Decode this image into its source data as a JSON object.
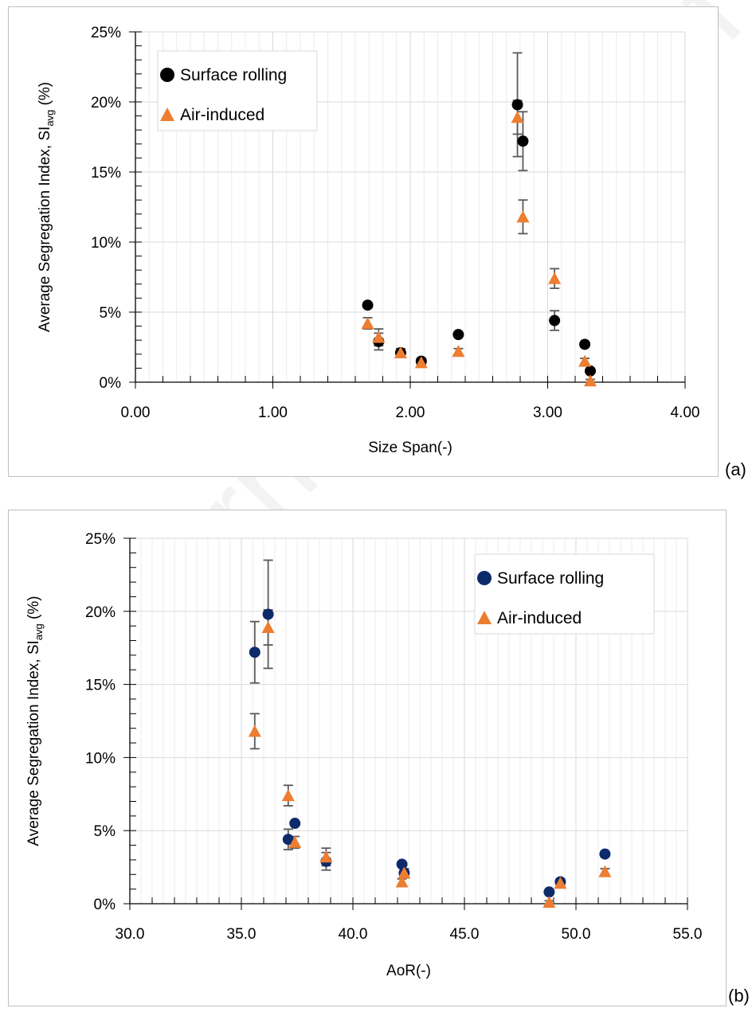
{
  "panels": [
    {
      "label": "(a)"
    },
    {
      "label": "(b)"
    }
  ],
  "watermark": "Journal Pre-proof",
  "colors": {
    "surface_a": "#000000",
    "surface_b": "#0d2a6b",
    "air": "#ed7d31",
    "grid": "#d9d9d9",
    "errorbar": "#595959"
  },
  "chart_data": [
    {
      "type": "scatter",
      "title": "",
      "xlabel": "Size Span(-)",
      "ylabel": "Average Segregation Index, SI_avg (%)",
      "ylabel_parts": {
        "main": "Average Segregation Index, SI",
        "sub": "avg",
        "tail": " (%)"
      },
      "xlim": [
        0.0,
        4.0
      ],
      "ylim": [
        0,
        0.25
      ],
      "xticks": [
        0.0,
        1.0,
        2.0,
        3.0,
        4.0
      ],
      "xtick_labels": [
        "0.00",
        "1.00",
        "2.00",
        "3.00",
        "4.00"
      ],
      "yticks": [
        0,
        0.05,
        0.1,
        0.15,
        0.2,
        0.25
      ],
      "ytick_labels": [
        "0%",
        "5%",
        "10%",
        "15%",
        "20%",
        "25%"
      ],
      "grid": true,
      "legend_position": "top-left",
      "series": [
        {
          "name": "Surface rolling",
          "marker": "circle",
          "color": "#000000",
          "points": [
            {
              "x": 1.69,
              "y": 0.055,
              "err": 0
            },
            {
              "x": 1.77,
              "y": 0.029,
              "err": 0.006
            },
            {
              "x": 1.93,
              "y": 0.021,
              "err": 0.003
            },
            {
              "x": 2.08,
              "y": 0.015,
              "err": 0.002
            },
            {
              "x": 2.35,
              "y": 0.034,
              "err": 0
            },
            {
              "x": 2.78,
              "y": 0.198,
              "err": 0.037
            },
            {
              "x": 2.82,
              "y": 0.172,
              "err": 0.021
            },
            {
              "x": 3.05,
              "y": 0.044,
              "err": 0.007
            },
            {
              "x": 3.27,
              "y": 0.027,
              "err": 0
            },
            {
              "x": 3.31,
              "y": 0.008,
              "err": 0
            }
          ]
        },
        {
          "name": "Air-induced",
          "marker": "triangle",
          "color": "#ed7d31",
          "points": [
            {
              "x": 1.69,
              "y": 0.042,
              "err": 0.004
            },
            {
              "x": 1.77,
              "y": 0.032,
              "err": 0.006
            },
            {
              "x": 1.93,
              "y": 0.021,
              "err": 0.002
            },
            {
              "x": 2.08,
              "y": 0.014,
              "err": 0.002
            },
            {
              "x": 2.35,
              "y": 0.022,
              "err": 0.002
            },
            {
              "x": 2.78,
              "y": 0.189,
              "err": 0.012
            },
            {
              "x": 2.82,
              "y": 0.118,
              "err": 0.012
            },
            {
              "x": 3.05,
              "y": 0.074,
              "err": 0.007
            },
            {
              "x": 3.27,
              "y": 0.015,
              "err": 0.002
            },
            {
              "x": 3.31,
              "y": 0.001,
              "err": 0.001
            }
          ]
        }
      ]
    },
    {
      "type": "scatter",
      "title": "",
      "xlabel": "AoR(-)",
      "ylabel": "Average Segregation Index, SI_avg (%)",
      "ylabel_parts": {
        "main": "Average Segregation Index, SI",
        "sub": "avg",
        "tail": " (%)"
      },
      "xlim": [
        30.0,
        55.0
      ],
      "ylim": [
        0,
        0.25
      ],
      "xticks": [
        30.0,
        35.0,
        40.0,
        45.0,
        50.0,
        55.0
      ],
      "xtick_labels": [
        "30.0",
        "35.0",
        "40.0",
        "45.0",
        "50.0",
        "55.0"
      ],
      "yticks": [
        0,
        0.05,
        0.1,
        0.15,
        0.2,
        0.25
      ],
      "ytick_labels": [
        "0%",
        "5%",
        "10%",
        "15%",
        "20%",
        "25%"
      ],
      "grid": true,
      "legend_position": "top-right",
      "series": [
        {
          "name": "Surface rolling",
          "marker": "circle",
          "color": "#0d2a6b",
          "points": [
            {
              "x": 35.6,
              "y": 0.172,
              "err": 0.021
            },
            {
              "x": 36.2,
              "y": 0.198,
              "err": 0.037
            },
            {
              "x": 37.1,
              "y": 0.044,
              "err": 0.007
            },
            {
              "x": 37.4,
              "y": 0.055,
              "err": 0
            },
            {
              "x": 38.8,
              "y": 0.029,
              "err": 0.006
            },
            {
              "x": 42.2,
              "y": 0.027,
              "err": 0
            },
            {
              "x": 42.3,
              "y": 0.021,
              "err": 0.003
            },
            {
              "x": 48.8,
              "y": 0.008,
              "err": 0
            },
            {
              "x": 49.3,
              "y": 0.015,
              "err": 0.002
            },
            {
              "x": 51.3,
              "y": 0.034,
              "err": 0
            }
          ]
        },
        {
          "name": "Air-induced",
          "marker": "triangle",
          "color": "#ed7d31",
          "points": [
            {
              "x": 35.6,
              "y": 0.118,
              "err": 0.012
            },
            {
              "x": 36.2,
              "y": 0.189,
              "err": 0.012
            },
            {
              "x": 37.1,
              "y": 0.074,
              "err": 0.007
            },
            {
              "x": 37.4,
              "y": 0.042,
              "err": 0.004
            },
            {
              "x": 38.8,
              "y": 0.032,
              "err": 0.006
            },
            {
              "x": 42.2,
              "y": 0.015,
              "err": 0.002
            },
            {
              "x": 42.3,
              "y": 0.021,
              "err": 0.002
            },
            {
              "x": 48.8,
              "y": 0.001,
              "err": 0.001
            },
            {
              "x": 49.3,
              "y": 0.014,
              "err": 0.002
            },
            {
              "x": 51.3,
              "y": 0.022,
              "err": 0.002
            }
          ]
        }
      ]
    }
  ]
}
